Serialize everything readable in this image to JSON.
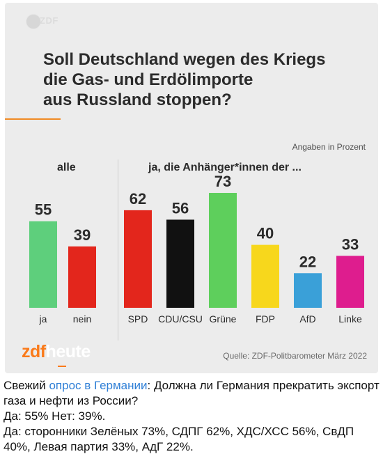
{
  "header": {
    "logo_text": "ZDF",
    "title_lines": [
      "Soll Deutschland wegen des Kriegs",
      "die Gas- und Erdölimporte",
      "aus Russland stoppen?"
    ],
    "note": "Angaben in Prozent",
    "group_all": "alle",
    "group_supporters": "ja, die Anhänger*innen der ..."
  },
  "colors": {
    "accent": "#f08a24",
    "ja": "#5ecf7c",
    "nein": "#e3261c",
    "SPD": "#e3261c",
    "CDU/CSU": "#111111",
    "Grüne": "#5ecf5c",
    "FDP": "#f7d71c",
    "AfD": "#3aa0d8",
    "Linke": "#de1d8e"
  },
  "chart_data": [
    {
      "type": "bar",
      "title": "alle",
      "categories": [
        "ja",
        "nein"
      ],
      "values": [
        55,
        39
      ],
      "ylim": [
        0,
        100
      ]
    },
    {
      "type": "bar",
      "title": "ja, die Anhänger*innen der ...",
      "categories": [
        "SPD",
        "CDU/CSU",
        "Grüne",
        "FDP",
        "AfD",
        "Linke"
      ],
      "values": [
        62,
        56,
        73,
        40,
        22,
        33
      ],
      "ylim": [
        0,
        100
      ]
    }
  ],
  "footer": {
    "brand_zdf": "zdf",
    "brand_heute": "heute",
    "source": "Quelle: ZDF-Politbarometer März 2022"
  },
  "caption": {
    "prefix": "Свежий ",
    "link": "опрос в Германии",
    "suffix": ": Должна ли Германия прекратить экспорт газа и нефти из России?",
    "line2": "Да: 55% Нет: 39%.",
    "line3": "Да: сторонники Зелёных 73%, СДПГ 62%, ХДС/ХСС 56%, СвДП 40%, Левая партия 33%, АдГ 22%."
  }
}
